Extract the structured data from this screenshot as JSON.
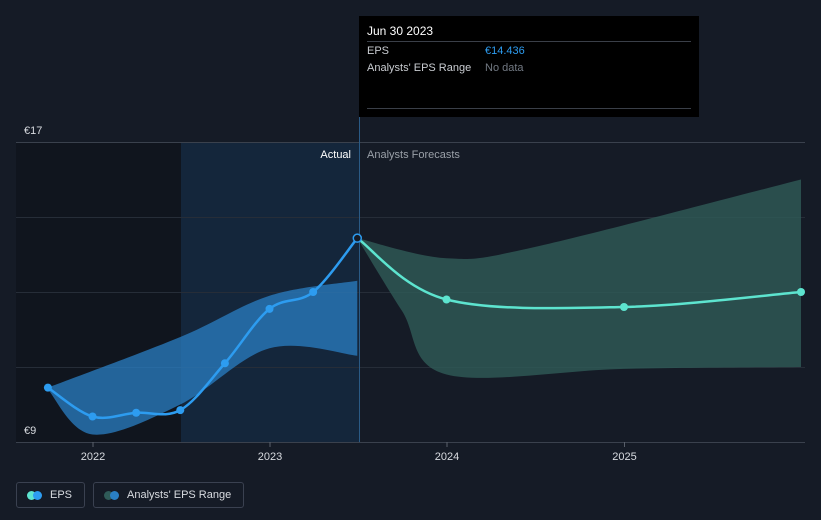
{
  "chart_data": {
    "type": "line",
    "y_axis": {
      "ticks": [
        "€17",
        "€9"
      ],
      "ylim": [
        9,
        17
      ]
    },
    "x_axis": {
      "ticks": [
        "2022",
        "2023",
        "2024",
        "2025"
      ]
    },
    "divider_labels": {
      "left": "Actual",
      "right": "Analysts Forecasts"
    },
    "series": [
      {
        "name": "EPS",
        "color": "#2d9cf0",
        "points": [
          [
            "2021-09-30",
            10.45
          ],
          [
            "2021-12-31",
            9.68
          ],
          [
            "2022-03-31",
            9.78
          ],
          [
            "2022-06-30",
            9.85
          ],
          [
            "2022-09-30",
            11.1
          ],
          [
            "2022-12-31",
            12.55
          ],
          [
            "2023-03-31",
            13.0
          ],
          [
            "2023-06-30",
            14.436
          ]
        ]
      },
      {
        "name": "EPS",
        "color": "#5de4cf",
        "points": [
          [
            "2023-06-30",
            14.436
          ],
          [
            "2023-12-31",
            12.8
          ],
          [
            "2024-12-31",
            12.6
          ],
          [
            "2025-12-31",
            13.0
          ]
        ]
      }
    ],
    "range_bands": [
      {
        "name": "Analysts' EPS Range",
        "color": "#2a7fc4",
        "upper": [
          [
            "2021-09-30",
            10.45
          ],
          [
            "2022-06-30",
            11.8
          ],
          [
            "2022-12-31",
            12.9
          ],
          [
            "2023-06-30",
            13.3
          ]
        ],
        "lower": [
          [
            "2021-09-30",
            10.4
          ],
          [
            "2021-12-31",
            9.2
          ],
          [
            "2022-06-30",
            10.0
          ],
          [
            "2022-12-31",
            11.5
          ],
          [
            "2023-06-30",
            11.3
          ]
        ]
      },
      {
        "name": "Analysts' EPS Range",
        "color": "#2f5b58",
        "upper": [
          [
            "2023-06-30",
            14.436
          ],
          [
            "2023-12-31",
            13.9
          ],
          [
            "2024-06-30",
            14.2
          ],
          [
            "2025-12-31",
            16.0
          ]
        ],
        "lower": [
          [
            "2023-06-30",
            14.436
          ],
          [
            "2023-09-30",
            12.5
          ],
          [
            "2023-12-31",
            10.8
          ],
          [
            "2024-12-31",
            10.95
          ],
          [
            "2025-12-31",
            11.0
          ]
        ]
      }
    ],
    "grid": true,
    "legend_position": "bottom-left"
  },
  "tooltip": {
    "date": "Jun 30 2023",
    "rows": [
      {
        "label": "EPS",
        "value": "€14.436"
      },
      {
        "label": "Analysts' EPS Range",
        "value": "No data"
      }
    ]
  },
  "legend": [
    {
      "label": "EPS",
      "colors": [
        "#5de4cf",
        "#2d9cf0"
      ]
    },
    {
      "label": "Analysts' EPS Range",
      "colors": [
        "#2f5b58",
        "#2a7fc4"
      ]
    }
  ]
}
